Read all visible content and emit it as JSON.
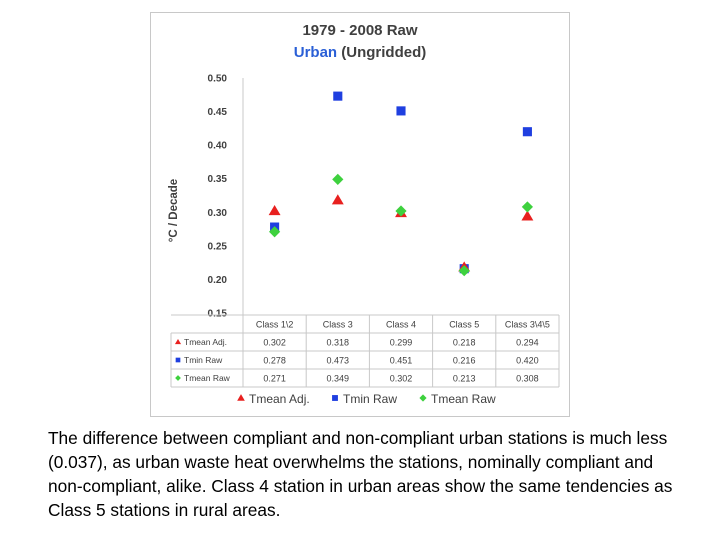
{
  "caption": "The difference between compliant and non-compliant urban stations is much less (0.037), as urban waste heat overwhelms the stations, nominally compliant and non-compliant, alike. Class 4 station in urban areas show the same tendencies as Class 5 stations in rural areas.",
  "chart_data": {
    "type": "scatter",
    "title": "1979 - 2008 Raw",
    "subtitle_highlight": "Urban",
    "subtitle_rest": " (Ungridded)",
    "xlabel": "",
    "ylabel": "°C / Decade",
    "ylim": [
      0.15,
      0.5
    ],
    "yticks": [
      "0.50",
      "0.45",
      "0.40",
      "0.35",
      "0.30",
      "0.25",
      "0.20",
      "0.15"
    ],
    "categories": [
      "Class 1\\2",
      "Class 3",
      "Class 4",
      "Class 5",
      "Class 3\\4\\5"
    ],
    "grid": false,
    "legend_position": "bottom",
    "series": [
      {
        "name": "Tmean Adj.",
        "table_label": "Tmean Adj.",
        "marker": "triangle",
        "color": "#e8201f",
        "values": [
          0.302,
          0.318,
          0.299,
          0.218,
          0.294
        ],
        "display": [
          "0.302",
          "0.318",
          "0.299",
          "0.218",
          "0.294"
        ]
      },
      {
        "name": "Tmin Raw",
        "table_label": "Tmin Raw",
        "marker": "square",
        "color": "#1f3fe0",
        "values": [
          0.278,
          0.473,
          0.451,
          0.216,
          0.42
        ],
        "display": [
          "0.278",
          "0.473",
          "0.451",
          "0.216",
          "0.420"
        ]
      },
      {
        "name": "Tmean Raw",
        "table_label": "Tmean Raw",
        "marker": "diamond",
        "color": "#3ed13e",
        "values": [
          0.271,
          0.349,
          0.302,
          0.213,
          0.308
        ],
        "display": [
          "0.271",
          "0.349",
          "0.302",
          "0.213",
          "0.308"
        ]
      }
    ]
  }
}
